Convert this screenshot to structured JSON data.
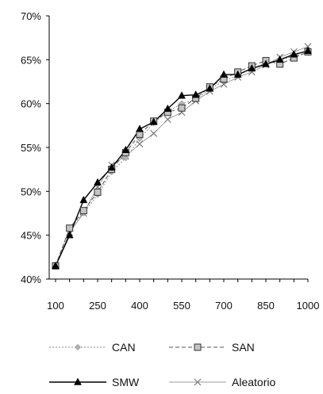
{
  "chart_data": {
    "type": "line",
    "x": [
      100,
      150,
      200,
      250,
      300,
      350,
      400,
      450,
      500,
      550,
      600,
      650,
      700,
      750,
      800,
      850,
      900,
      950,
      1000
    ],
    "x_ticks": [
      "100",
      "250",
      "400",
      "550",
      "700",
      "850",
      "1000"
    ],
    "y_ticks": [
      "40%",
      "45%",
      "50%",
      "55%",
      "60%",
      "65%",
      "70%"
    ],
    "ylim": [
      40,
      70
    ],
    "xlim": [
      100,
      1000
    ],
    "y_unit": "%",
    "grid": false,
    "legend_position": "bottom",
    "series": [
      {
        "name": "CAN",
        "style": "dotted",
        "marker": "diamond",
        "color": "#8a8a8a",
        "values": [
          41.5,
          45.8,
          47.5,
          49.6,
          52.2,
          53.8,
          56.0,
          57.8,
          59.1,
          60.0,
          60.5,
          61.6,
          62.6,
          63.2,
          64.0,
          64.6,
          65.0,
          65.4,
          65.8
        ]
      },
      {
        "name": "SAN",
        "style": "dashed",
        "marker": "square",
        "color": "#555555",
        "values": [
          41.5,
          45.8,
          47.8,
          49.9,
          52.5,
          54.4,
          56.5,
          58.0,
          59.0,
          59.5,
          60.6,
          61.9,
          62.8,
          63.6,
          64.3,
          64.9,
          64.5,
          65.2,
          65.9
        ]
      },
      {
        "name": "SMW",
        "style": "solid",
        "marker": "triangle",
        "color": "#000000",
        "values": [
          41.5,
          45.0,
          49.0,
          51.0,
          52.7,
          54.7,
          57.1,
          57.9,
          59.4,
          60.9,
          61.0,
          61.7,
          63.3,
          63.3,
          64.0,
          64.5,
          65.0,
          65.6,
          66.0
        ]
      },
      {
        "name": "Aleatorio",
        "style": "solid-thin",
        "marker": "x",
        "color": "#7a7a7a",
        "values": [
          41.5,
          45.3,
          47.5,
          50.5,
          53.0,
          54.0,
          55.4,
          56.6,
          58.2,
          59.0,
          60.3,
          61.4,
          62.2,
          63.0,
          63.6,
          64.4,
          65.3,
          65.9,
          66.5
        ]
      }
    ]
  }
}
